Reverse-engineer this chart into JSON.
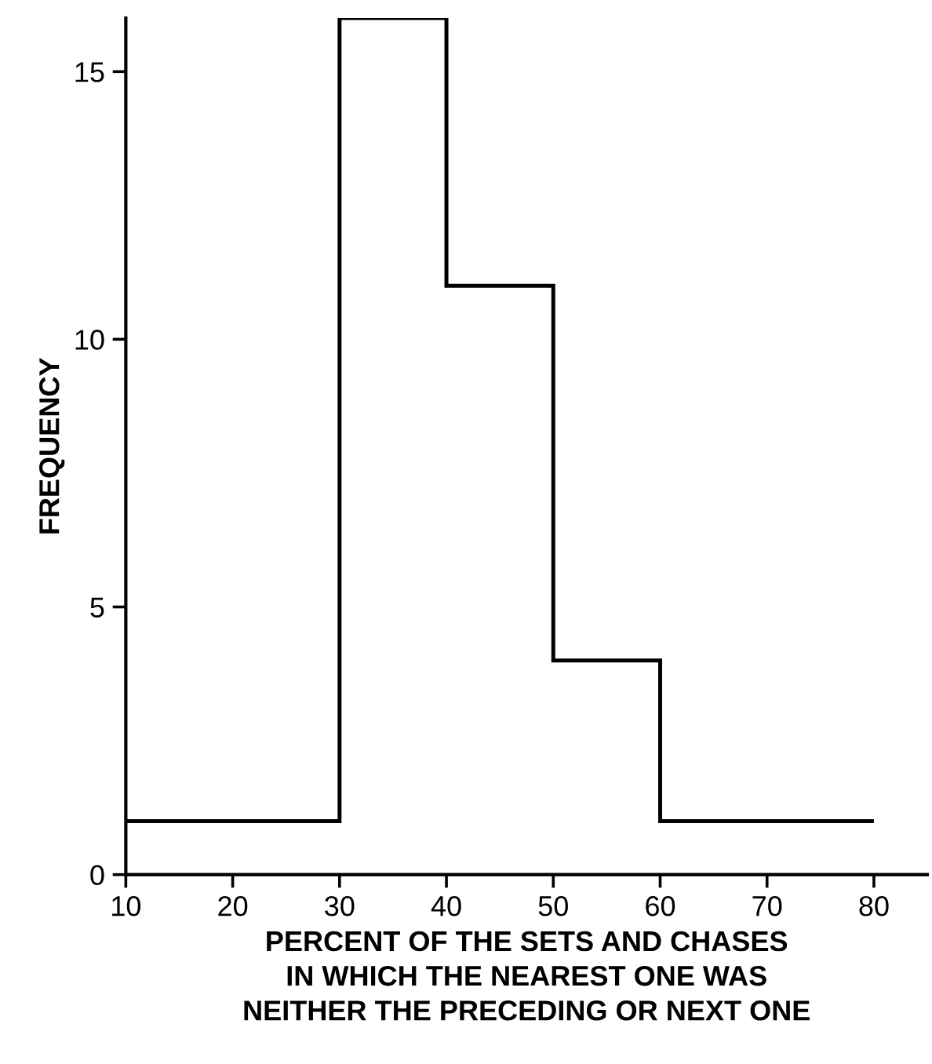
{
  "chart_data": {
    "type": "histogram",
    "xlabel": "PERCENT OF THE SETS AND CHASES\nIN WHICH THE NEAREST ONE WAS\nNEITHER THE PRECEDING OR NEXT ONE",
    "ylabel": "FREQUENCY",
    "bins": [
      10,
      20,
      30,
      40,
      50,
      60,
      70,
      80
    ],
    "values": [
      1,
      1,
      16,
      11,
      4,
      1,
      1
    ],
    "color": "#000000",
    "xlim": [
      10,
      85
    ],
    "ylim": [
      0,
      16
    ],
    "xticks": [
      10,
      20,
      30,
      40,
      50,
      60,
      70,
      80
    ],
    "yticks": [
      0,
      5,
      10,
      15
    ],
    "grid": false
  }
}
